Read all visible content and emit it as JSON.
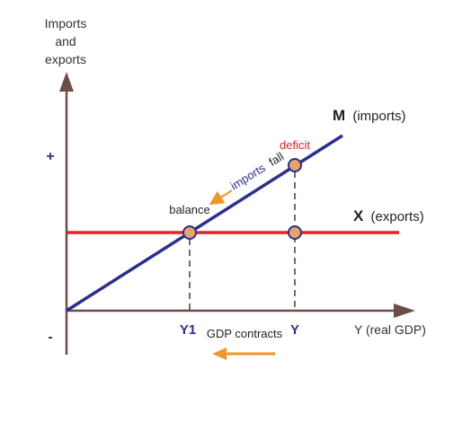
{
  "axes": {
    "y_label_lines": [
      "Imports",
      "and",
      "exports"
    ],
    "x_label": "Y (real GDP)",
    "plus_sign": "+",
    "minus_sign": "-"
  },
  "lines": {
    "imports": {
      "letter": "M",
      "label": "(imports)",
      "color": "#2b2f8f"
    },
    "exports": {
      "letter": "X",
      "label": "(exports)",
      "color": "#e0222a"
    }
  },
  "annotations": {
    "deficit": "deficit",
    "balance": "balance",
    "imports_word": "imports",
    "fall_word": "fall",
    "gdp_contracts": "GDP contracts"
  },
  "ticks": {
    "y1": "Y1",
    "y": "Y"
  },
  "colors": {
    "axis": "#6b4f47",
    "marker_fill": "#e9a36a",
    "marker_stroke": "#2b2f8f",
    "arrow_orange": "#f0962a",
    "deficit_red": "#e0222a",
    "tick_blue": "#2b2f8f"
  }
}
